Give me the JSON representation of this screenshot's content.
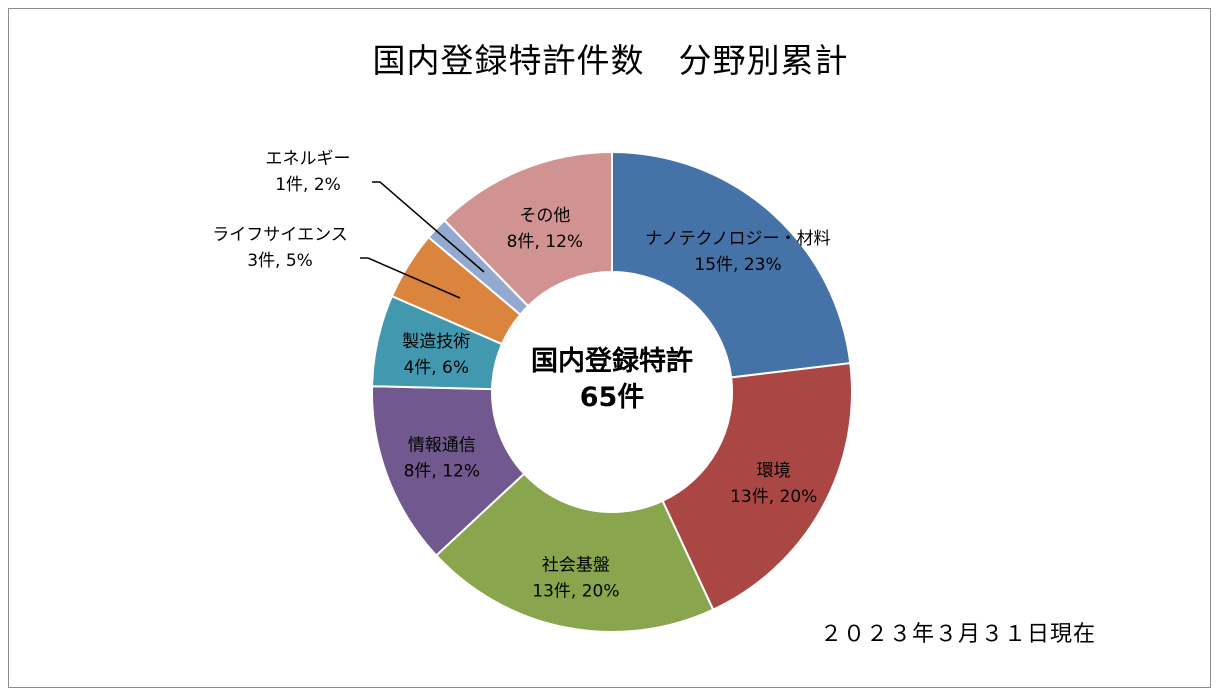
{
  "chart_data": {
    "type": "pie",
    "variant": "donut",
    "title": "国内登録特許件数　分野別累計",
    "center_label": {
      "line1": "国内登録特許",
      "line2": "65件"
    },
    "date_note": "２０２３年３月３１日現在",
    "unit": "件",
    "total": 65,
    "slices": [
      {
        "name": "ナノテクノロジー・材料",
        "value": 15,
        "percent": 23,
        "label_value": "15件, 23%",
        "color": "#4572a7"
      },
      {
        "name": "環境",
        "value": 13,
        "percent": 20,
        "label_value": "13件, 20%",
        "color": "#aa4643"
      },
      {
        "name": "社会基盤",
        "value": 13,
        "percent": 20,
        "label_value": "13件, 20%",
        "color": "#89a54e"
      },
      {
        "name": "情報通信",
        "value": 8,
        "percent": 12,
        "label_value": "8件, 12%",
        "color": "#71588f"
      },
      {
        "name": "製造技術",
        "value": 4,
        "percent": 6,
        "label_value": "4件, 6%",
        "color": "#4198af"
      },
      {
        "name": "ライフサイエンス",
        "value": 3,
        "percent": 5,
        "label_value": "3件, 5%",
        "color": "#db843d"
      },
      {
        "name": "エネルギー",
        "value": 1,
        "percent": 2,
        "label_value": "1件, 2%",
        "color": "#93a9cf"
      },
      {
        "name": "その他",
        "value": 8,
        "percent": 12,
        "label_value": "8件, 12%",
        "color": "#d19392"
      }
    ]
  }
}
